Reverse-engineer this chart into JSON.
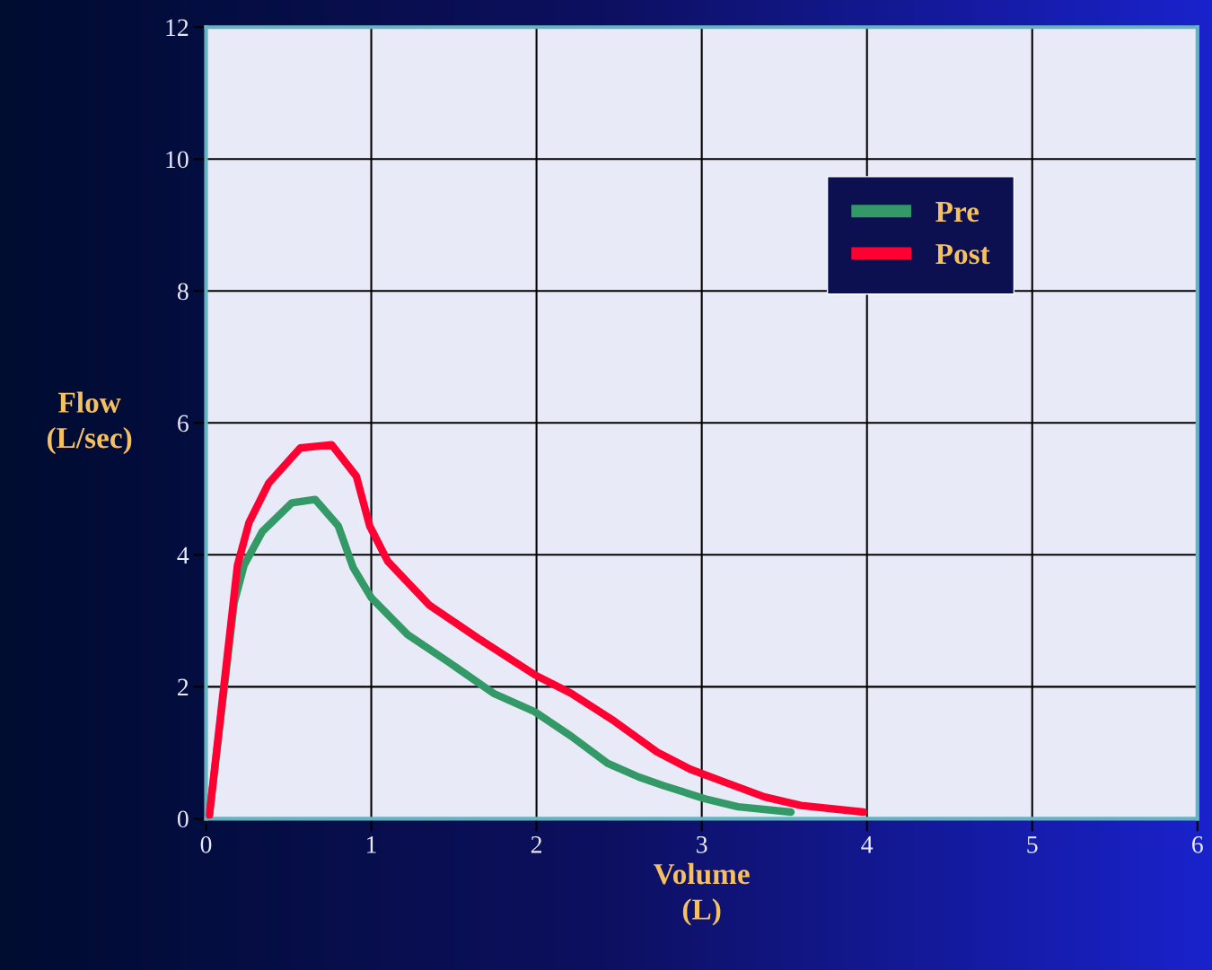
{
  "chart_data": {
    "type": "line",
    "xlabel": "Volume\n(L)",
    "ylabel": "Flow\n(L/sec)",
    "xlim": [
      0,
      6
    ],
    "xticks": [
      0,
      1,
      2,
      3,
      4,
      5,
      6
    ],
    "ylim": [
      0,
      12
    ],
    "yticks": [
      0,
      2,
      4,
      6,
      8,
      10,
      12
    ],
    "grid": true,
    "legend": "top right",
    "marker": "none",
    "line_style": "solid",
    "series": [
      {
        "name": "Pre",
        "color": "#339966",
        "x": [
          0.02,
          0.17,
          0.23,
          0.34,
          0.52,
          0.66,
          0.8,
          0.89,
          1.0,
          1.22,
          1.47,
          1.74,
          1.99,
          2.21,
          2.43,
          2.62,
          2.77,
          3.02,
          3.22,
          3.54
        ],
        "values": [
          0.05,
          3.27,
          3.84,
          4.35,
          4.79,
          4.84,
          4.44,
          3.81,
          3.35,
          2.79,
          2.37,
          1.9,
          1.62,
          1.25,
          0.84,
          0.63,
          0.5,
          0.3,
          0.18,
          0.1
        ]
      },
      {
        "name": "Post",
        "color": "#ff0033",
        "x": [
          0.02,
          0.19,
          0.26,
          0.38,
          0.57,
          0.76,
          0.91,
          0.99,
          1.1,
          1.35,
          1.65,
          1.99,
          2.21,
          2.47,
          2.73,
          2.93,
          3.12,
          3.38,
          3.6,
          3.98
        ],
        "values": [
          0.05,
          3.84,
          4.49,
          5.09,
          5.62,
          5.67,
          5.19,
          4.44,
          3.9,
          3.24,
          2.73,
          2.18,
          1.9,
          1.48,
          1.01,
          0.75,
          0.57,
          0.33,
          0.2,
          0.1
        ]
      }
    ]
  }
}
